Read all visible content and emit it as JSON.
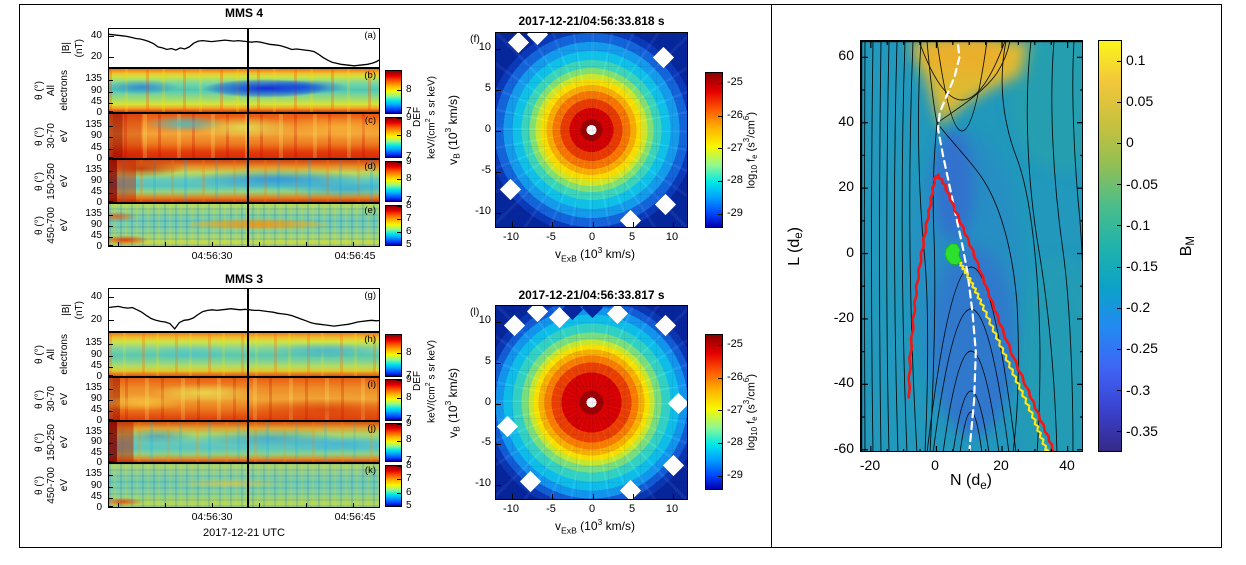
{
  "figure": {
    "def_label": {
      "line1": "DEF",
      "line2": "keV/(cm^{2} s sr keV)"
    },
    "utc_label": "2017-12-21 UTC"
  },
  "colors": {
    "trace": "#000000",
    "marker_line": "#000000",
    "sim_background": "#2198bc",
    "sim_lobe_blue": "#3f58da",
    "sim_island_yellow": "#e5bc2e",
    "overlay_red": "#f51515",
    "overlay_yellow": "#ffe818",
    "overlay_white": "#ffffff",
    "overlay_green": "#2ee02e"
  },
  "chart_data": [
    {
      "id": "a",
      "panel": "(a)",
      "type": "line",
      "title": "MMS 4",
      "ylabel_lines": [
        "|B|",
        "(nT)"
      ],
      "yticks": [
        40,
        20
      ],
      "ylim": [
        10,
        48
      ],
      "xticks": [
        {
          "label": "04:56:30",
          "f": 0.381
        },
        {
          "label": "04:56:45",
          "f": 0.907
        }
      ],
      "minor_tick_f": [
        0.034,
        0.207,
        0.379,
        0.552,
        0.724,
        0.897
      ],
      "marker_f": 0.515,
      "values": [
        43,
        42.5,
        42,
        41.5,
        41,
        40,
        39,
        38.5,
        37.5,
        36,
        34,
        31,
        30,
        28.5,
        29.5,
        28,
        30,
        29,
        31,
        34.5,
        36.5,
        37,
        36.5,
        36,
        36.5,
        37,
        37.5,
        37,
        36.5,
        37,
        36.5,
        36,
        35.5,
        36,
        35.5,
        34.5,
        33.5,
        33,
        32.5,
        31.5,
        30,
        28.5,
        29,
        28.5,
        28,
        27.5,
        26.5,
        24,
        21,
        18.5,
        16.5,
        15.5,
        14.5,
        14,
        13.5,
        13,
        13.5,
        14,
        14.5,
        15.5,
        17,
        19.5
      ]
    },
    {
      "id": "b",
      "panel": "(b)",
      "type": "heatmap",
      "ylabel_lines": [
        "θ (°)",
        "All",
        "electrons"
      ],
      "yticks": [
        135,
        90,
        45,
        0
      ],
      "ylim": [
        0,
        180
      ],
      "colorbar": {
        "ticks": [
          {
            "v": "8",
            "f": 0.45
          },
          {
            "v": "7",
            "f": 0.97
          }
        ]
      }
    },
    {
      "id": "c",
      "panel": "(c)",
      "type": "heatmap",
      "ylabel_lines": [
        "θ (°)",
        "30-70",
        "eV"
      ],
      "yticks": [
        135,
        90,
        45,
        0
      ],
      "ylim": [
        0,
        180
      ],
      "colorbar": {
        "ticks": [
          {
            "v": "9",
            "f": 0.03
          },
          {
            "v": "8",
            "f": 0.45
          },
          {
            "v": "7",
            "f": 0.97
          }
        ]
      }
    },
    {
      "id": "d",
      "panel": "(d)",
      "type": "heatmap",
      "ylabel_lines": [
        "θ (°)",
        "150-250",
        "eV"
      ],
      "yticks": [
        135,
        90,
        45,
        0
      ],
      "ylim": [
        0,
        180
      ],
      "colorbar": {
        "ticks": [
          {
            "v": "9",
            "f": 0.03
          },
          {
            "v": "8",
            "f": 0.45
          },
          {
            "v": "7",
            "f": 0.97
          }
        ]
      }
    },
    {
      "id": "e",
      "panel": "(e)",
      "type": "heatmap",
      "ylabel_lines": [
        "θ (°)",
        "450-700",
        "eV"
      ],
      "yticks": [
        135,
        90,
        45,
        0
      ],
      "ylim": [
        0,
        180
      ],
      "colorbar": {
        "ticks": [
          {
            "v": "8",
            "f": 0.03
          },
          {
            "v": "7",
            "f": 0.34
          },
          {
            "v": "6",
            "f": 0.66
          },
          {
            "v": "5",
            "f": 0.97
          }
        ]
      }
    },
    {
      "id": "g",
      "panel": "(g)",
      "type": "line",
      "title": "MMS 3",
      "ylabel_lines": [
        "|B|",
        "(nT)"
      ],
      "yticks": [
        40,
        20
      ],
      "ylim": [
        10,
        48
      ],
      "xticks": [
        {
          "label": "04:56:30",
          "f": 0.381
        },
        {
          "label": "04:56:45",
          "f": 0.907
        }
      ],
      "minor_tick_f": [
        0.034,
        0.207,
        0.379,
        0.552,
        0.724,
        0.897
      ],
      "marker_f": 0.515,
      "values": [
        32,
        32.5,
        33,
        32,
        31.5,
        32,
        30,
        28,
        25,
        22.5,
        21,
        20,
        19.5,
        18,
        13.5,
        19,
        21,
        21.5,
        23,
        26,
        28.5,
        29.5,
        30,
        29.5,
        30,
        30.5,
        31,
        30.5,
        30,
        30.5,
        30,
        29.5,
        29.5,
        29,
        28.5,
        28,
        27,
        26.5,
        26,
        25,
        23.5,
        22,
        20.5,
        19,
        18,
        17.5,
        17,
        16.5,
        16,
        16.5,
        17,
        17.5,
        18.5,
        19.5,
        20,
        20.5,
        21,
        20.5,
        21
      ]
    },
    {
      "id": "h",
      "panel": "(h)",
      "type": "heatmap",
      "ylabel_lines": [
        "θ (°)",
        "All",
        "electrons"
      ],
      "yticks": [
        135,
        90,
        45,
        0
      ],
      "ylim": [
        0,
        180
      ],
      "colorbar": {
        "ticks": [
          {
            "v": "8",
            "f": 0.45
          },
          {
            "v": "7",
            "f": 0.97
          }
        ]
      }
    },
    {
      "id": "i",
      "panel": "(i)",
      "type": "heatmap",
      "ylabel_lines": [
        "θ (°)",
        "30-70",
        "eV"
      ],
      "yticks": [
        135,
        90,
        45,
        0
      ],
      "ylim": [
        0,
        180
      ],
      "colorbar": {
        "ticks": [
          {
            "v": "9",
            "f": 0.03
          },
          {
            "v": "8",
            "f": 0.45
          },
          {
            "v": "7",
            "f": 0.97
          }
        ]
      }
    },
    {
      "id": "j",
      "panel": "(j)",
      "type": "heatmap",
      "ylabel_lines": [
        "θ (°)",
        "150-250",
        "eV"
      ],
      "yticks": [
        135,
        90,
        45,
        0
      ],
      "ylim": [
        0,
        180
      ],
      "colorbar": {
        "ticks": [
          {
            "v": "9",
            "f": 0.03
          },
          {
            "v": "8",
            "f": 0.45
          },
          {
            "v": "7",
            "f": 0.97
          }
        ]
      }
    },
    {
      "id": "k",
      "panel": "(k)",
      "type": "heatmap",
      "ylabel_lines": [
        "θ (°)",
        "450-700",
        "eV"
      ],
      "yticks": [
        135,
        90,
        45,
        0
      ],
      "ylim": [
        0,
        180
      ],
      "colorbar": {
        "ticks": [
          {
            "v": "8",
            "f": 0.03
          },
          {
            "v": "7",
            "f": 0.34
          },
          {
            "v": "6",
            "f": 0.66
          },
          {
            "v": "5",
            "f": 0.97
          }
        ]
      }
    },
    {
      "id": "f",
      "panel": "(f)",
      "type": "polar-heatmap",
      "title": "2017-12-21/04:56:33.818 s",
      "xlabel": "v_{ExB} (10^{3} km/s)",
      "ylabel": "v_{B} (10^{3} km/s)",
      "ticks": [
        -10,
        -5,
        0,
        5,
        10
      ],
      "lim": [
        -12,
        12
      ],
      "colorbar": {
        "label": "log_{10} f_{e} (s^{3}/cm^{6})",
        "ticks": [
          {
            "v": "-25",
            "f": 0.07
          },
          {
            "v": "-26",
            "f": 0.28
          },
          {
            "v": "-27",
            "f": 0.49
          },
          {
            "v": "-28",
            "f": 0.7
          },
          {
            "v": "-29",
            "f": 0.91
          }
        ]
      },
      "radial_profile": {
        "radius_1e3kms": [
          0.5,
          2,
          3.5,
          5,
          6,
          7,
          8,
          9,
          10,
          12
        ],
        "log10_fe": [
          -24.8,
          -25.1,
          -25.7,
          -26.2,
          -26.8,
          -27.2,
          -27.8,
          -28.3,
          -28.7,
          -29.2
        ]
      },
      "missing_bins": [
        {
          "x": 0.12,
          "y": 0.05
        },
        {
          "x": 0.22,
          "y": 0.01
        },
        {
          "x": 0.87,
          "y": 0.13
        },
        {
          "x": 0.08,
          "y": 0.8
        },
        {
          "x": 0.88,
          "y": 0.88
        },
        {
          "x": 0.7,
          "y": 0.96
        }
      ]
    },
    {
      "id": "l",
      "panel": "(l)",
      "type": "polar-heatmap",
      "title": "2017-12-21/04:56:33.817 s",
      "xlabel": "v_{ExB} (10^{3} km/s)",
      "ylabel": "v_{B} (10^{3} km/s)",
      "ticks": [
        -10,
        -5,
        0,
        5,
        10
      ],
      "lim": [
        -12,
        12
      ],
      "colorbar": {
        "label": "log_{10} f_{e} (s^{3}/cm^{6})",
        "ticks": [
          {
            "v": "-25",
            "f": 0.07
          },
          {
            "v": "-26",
            "f": 0.28
          },
          {
            "v": "-27",
            "f": 0.49
          },
          {
            "v": "-28",
            "f": 0.7
          },
          {
            "v": "-29",
            "f": 0.91
          }
        ]
      },
      "radial_profile": {
        "radius_1e3kms": [
          0.5,
          2,
          3.5,
          5,
          6,
          7,
          8,
          9,
          10,
          12
        ],
        "log10_fe": [
          -24.7,
          -24.9,
          -25.3,
          -25.9,
          -26.6,
          -27.1,
          -27.7,
          -28.2,
          -28.7,
          -29.1
        ]
      },
      "missing_bins": [
        {
          "x": 0.1,
          "y": 0.1
        },
        {
          "x": 0.22,
          "y": 0.03
        },
        {
          "x": 0.33,
          "y": 0.06
        },
        {
          "x": 0.5,
          "y": 0.01,
          "c": "#0626a0"
        },
        {
          "x": 0.63,
          "y": 0.04
        },
        {
          "x": 0.88,
          "y": 0.1
        },
        {
          "x": 0.95,
          "y": 0.5
        },
        {
          "x": 0.06,
          "y": 0.62
        },
        {
          "x": 0.18,
          "y": 0.9
        },
        {
          "x": 0.7,
          "y": 0.95
        },
        {
          "x": 0.92,
          "y": 0.82
        },
        {
          "x": 0.4,
          "y": 0.02,
          "c": "#0626a0"
        }
      ]
    },
    {
      "id": "sim",
      "type": "heatmap-contour",
      "xlabel": "N (d_{e})",
      "ylabel": "L (d_{e})",
      "xlim": [
        -23,
        45
      ],
      "ylim": [
        -61,
        65
      ],
      "xticks": [
        -20,
        0,
        20,
        40
      ],
      "yticks": [
        60,
        40,
        20,
        0,
        -20,
        -40,
        -60
      ],
      "colorbar": {
        "label": "B_{M}",
        "lim": [
          -0.375,
          0.125
        ],
        "ticks": [
          {
            "v": "0.1",
            "f": 0.05
          },
          {
            "v": "0.05",
            "f": 0.15
          },
          {
            "v": "0",
            "f": 0.25
          },
          {
            "v": "-0.05",
            "f": 0.35
          },
          {
            "v": "-0.1",
            "f": 0.45
          },
          {
            "v": "-0.15",
            "f": 0.55
          },
          {
            "v": "-0.2",
            "f": 0.65
          },
          {
            "v": "-0.25",
            "f": 0.75
          },
          {
            "v": "-0.3",
            "f": 0.85
          },
          {
            "v": "-0.35",
            "f": 0.95
          }
        ]
      },
      "overlays": {
        "white_dashed": {
          "color": "#ffffff",
          "points": [
            [
              10,
              -61
            ],
            [
              11.5,
              -45
            ],
            [
              12,
              -30
            ],
            [
              11,
              -18
            ],
            [
              9.5,
              -6
            ],
            [
              8,
              2
            ],
            [
              6.5,
              9
            ],
            [
              5,
              16
            ],
            [
              3.5,
              23
            ],
            [
              2,
              30
            ],
            [
              0.5,
              38
            ],
            [
              1,
              43
            ],
            [
              3,
              48
            ],
            [
              5.5,
              54
            ],
            [
              7,
              60
            ],
            [
              6.5,
              65
            ]
          ]
        },
        "red_curve": {
          "color": "#f51515",
          "points": [
            [
              -8.5,
              -44
            ],
            [
              -8,
              -32
            ],
            [
              -7,
              -20
            ],
            [
              -6,
              -10
            ],
            [
              -4.5,
              0
            ],
            [
              -3,
              9
            ],
            [
              -1.5,
              17
            ],
            [
              -0.5,
              23
            ],
            [
              0.5,
              24
            ],
            [
              2.5,
              21
            ],
            [
              5,
              15
            ],
            [
              8,
              8
            ],
            [
              11,
              1
            ],
            [
              14,
              -7
            ],
            [
              17,
              -15
            ],
            [
              20,
              -23
            ],
            [
              24,
              -33
            ],
            [
              28,
              -42
            ],
            [
              31,
              -49
            ],
            [
              34,
              -56
            ],
            [
              36,
              -61
            ]
          ]
        },
        "yellow_curve": {
          "color": "#ffe818",
          "points": [
            [
              5.5,
              -1
            ],
            [
              7,
              -2.5
            ],
            [
              8.5,
              -5
            ],
            [
              10.5,
              -8.5
            ],
            [
              12.5,
              -12.5
            ],
            [
              14.5,
              -17
            ],
            [
              17,
              -22.5
            ],
            [
              19.5,
              -28
            ],
            [
              22,
              -33.5
            ],
            [
              24.5,
              -39
            ],
            [
              27,
              -44.5
            ],
            [
              29.5,
              -50
            ],
            [
              31.5,
              -55
            ],
            [
              33.5,
              -60
            ],
            [
              34,
              -61
            ]
          ]
        },
        "green_region": {
          "color": "#2ee02e",
          "points": [
            [
              3,
              1.5
            ],
            [
              4.5,
              3
            ],
            [
              6.2,
              2.8
            ],
            [
              7.2,
              1.2
            ],
            [
              6.8,
              -0.6
            ],
            [
              7.6,
              -2
            ],
            [
              6.2,
              -3.4
            ],
            [
              4.4,
              -3.2
            ],
            [
              3.2,
              -1.8
            ],
            [
              2.6,
              -0.2
            ]
          ]
        }
      }
    }
  ]
}
